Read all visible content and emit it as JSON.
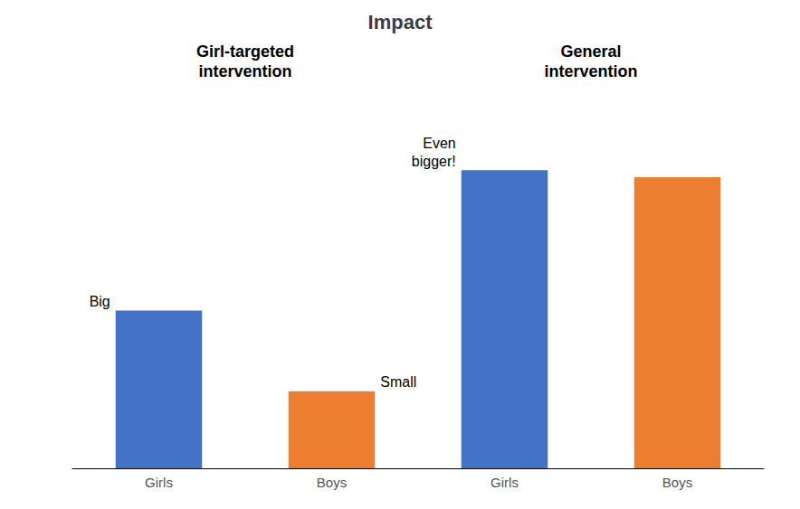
{
  "chart_data": {
    "type": "bar",
    "title": "Impact",
    "categories": [
      "Girls",
      "Boys",
      "Girls",
      "Boys"
    ],
    "values": [
      45,
      22,
      85,
      83
    ],
    "colors": [
      "#4472C4",
      "#ED7D31",
      "#4472C4",
      "#ED7D31"
    ],
    "ylim": [
      0,
      100
    ],
    "grid": false,
    "tick_labels": "x",
    "annotations": [
      "Big",
      "Small",
      "Even\nbigger!",
      "Girl-targeted\nintervention",
      "General\nintervention"
    ]
  }
}
